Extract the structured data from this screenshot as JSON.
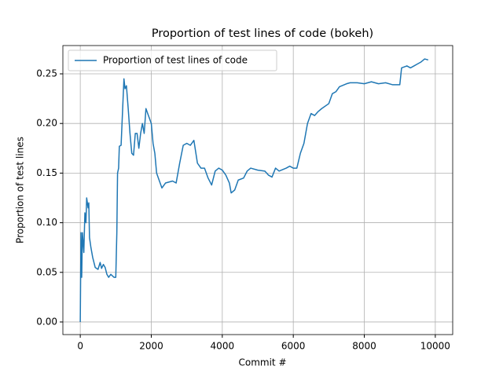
{
  "chart_data": {
    "type": "line",
    "title": "Proportion of test lines of code (bokeh)",
    "xlabel": "Commit #",
    "ylabel": "Proportion of test lines",
    "x": [
      0,
      20,
      40,
      60,
      100,
      130,
      160,
      180,
      220,
      240,
      260,
      300,
      350,
      420,
      500,
      560,
      600,
      650,
      700,
      750,
      800,
      860,
      950,
      1000,
      1030,
      1050,
      1080,
      1100,
      1150,
      1200,
      1230,
      1260,
      1300,
      1350,
      1400,
      1450,
      1500,
      1550,
      1600,
      1650,
      1700,
      1750,
      1800,
      1850,
      1900,
      1950,
      2000,
      2050,
      2100,
      2150,
      2200,
      2300,
      2400,
      2600,
      2700,
      2800,
      2900,
      3000,
      3100,
      3200,
      3300,
      3400,
      3500,
      3600,
      3700,
      3800,
      3900,
      4000,
      4100,
      4200,
      4250,
      4350,
      4450,
      4600,
      4700,
      4800,
      5000,
      5200,
      5300,
      5400,
      5500,
      5600,
      5800,
      5900,
      6000,
      6100,
      6200,
      6300,
      6400,
      6500,
      6600,
      6700,
      6800,
      7000,
      7100,
      7200,
      7300,
      7500,
      7600,
      7800,
      8000,
      8200,
      8400,
      8600,
      8800,
      9000,
      9050,
      9200,
      9300,
      9400,
      9500,
      9600,
      9700,
      9800
    ],
    "series": [
      {
        "name": "Proportion of test lines of code",
        "color": "#1f77b4",
        "values": [
          0.0,
          0.09,
          0.045,
          0.09,
          0.07,
          0.11,
          0.1,
          0.125,
          0.115,
          0.12,
          0.085,
          0.075,
          0.065,
          0.055,
          0.053,
          0.06,
          0.054,
          0.058,
          0.055,
          0.048,
          0.045,
          0.048,
          0.045,
          0.045,
          0.09,
          0.15,
          0.155,
          0.177,
          0.178,
          0.22,
          0.245,
          0.235,
          0.238,
          0.215,
          0.19,
          0.17,
          0.168,
          0.19,
          0.19,
          0.175,
          0.19,
          0.2,
          0.19,
          0.215,
          0.21,
          0.205,
          0.2,
          0.18,
          0.17,
          0.15,
          0.145,
          0.135,
          0.14,
          0.142,
          0.14,
          0.16,
          0.178,
          0.18,
          0.178,
          0.183,
          0.16,
          0.155,
          0.155,
          0.145,
          0.138,
          0.152,
          0.155,
          0.153,
          0.148,
          0.14,
          0.13,
          0.133,
          0.143,
          0.145,
          0.152,
          0.155,
          0.153,
          0.152,
          0.148,
          0.146,
          0.155,
          0.152,
          0.155,
          0.157,
          0.155,
          0.155,
          0.17,
          0.18,
          0.2,
          0.21,
          0.208,
          0.212,
          0.215,
          0.22,
          0.23,
          0.232,
          0.237,
          0.24,
          0.241,
          0.241,
          0.24,
          0.242,
          0.24,
          0.241,
          0.239,
          0.239,
          0.256,
          0.258,
          0.256,
          0.258,
          0.26,
          0.262,
          0.265,
          0.264
        ]
      }
    ],
    "xlim": [
      -490,
      10490
    ],
    "ylim": [
      -0.0127,
      0.2785
    ],
    "xticks": [
      0,
      2000,
      4000,
      6000,
      8000,
      10000
    ],
    "yticks": [
      {
        "value": 0,
        "label": "0.00"
      },
      {
        "value": 0.05,
        "label": "0.05"
      },
      {
        "value": 0.1,
        "label": "0.10"
      },
      {
        "value": 0.15,
        "label": "0.15"
      },
      {
        "value": 0.2,
        "label": "0.20"
      },
      {
        "value": 0.25,
        "label": "0.25"
      }
    ],
    "grid": true,
    "legend": "upper left"
  }
}
